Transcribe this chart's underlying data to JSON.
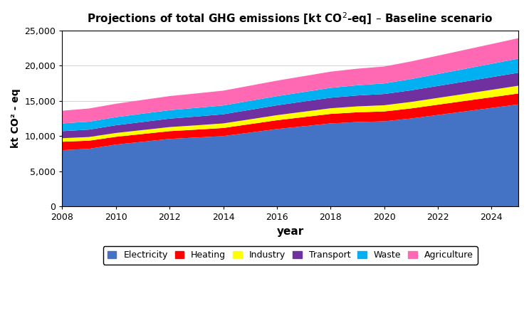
{
  "title": "Projections of total GHG emissions [kt CO²-eq] – Baseline scenario",
  "xlabel": "year",
  "ylabel": "kt CO² - eq",
  "years": [
    2008,
    2009,
    2010,
    2011,
    2012,
    2013,
    2014,
    2015,
    2016,
    2017,
    2018,
    2019,
    2020,
    2021,
    2022,
    2023,
    2024,
    2025
  ],
  "series": {
    "Electricity": [
      8000,
      8200,
      8800,
      9200,
      9600,
      9800,
      10000,
      10500,
      11000,
      11400,
      11800,
      12000,
      12100,
      12500,
      13000,
      13500,
      14000,
      14500
    ],
    "Heating": [
      1200,
      1150,
      1100,
      1100,
      1100,
      1120,
      1150,
      1200,
      1250,
      1300,
      1350,
      1380,
      1400,
      1430,
      1460,
      1490,
      1520,
      1550
    ],
    "Industry": [
      500,
      520,
      540,
      560,
      580,
      610,
      650,
      680,
      720,
      760,
      800,
      840,
      880,
      920,
      960,
      1000,
      1050,
      1100
    ],
    "Transport": [
      1000,
      1050,
      1100,
      1150,
      1200,
      1250,
      1300,
      1350,
      1400,
      1450,
      1500,
      1550,
      1600,
      1650,
      1700,
      1750,
      1800,
      1850
    ],
    "Waste": [
      1100,
      1130,
      1150,
      1180,
      1200,
      1230,
      1250,
      1280,
      1300,
      1350,
      1400,
      1450,
      1500,
      1600,
      1700,
      1800,
      1900,
      2000
    ],
    "Agriculture": [
      1800,
      1870,
      1900,
      1950,
      2000,
      2050,
      2100,
      2150,
      2200,
      2250,
      2300,
      2350,
      2400,
      2500,
      2600,
      2700,
      2800,
      2900
    ]
  },
  "colors": {
    "Electricity": "#4472C4",
    "Heating": "#FF0000",
    "Industry": "#FFFF00",
    "Transport": "#7030A0",
    "Waste": "#00B0F0",
    "Agriculture": "#FF69B4"
  },
  "ylim": [
    0,
    25000
  ],
  "yticks": [
    0,
    5000,
    10000,
    15000,
    20000,
    25000
  ],
  "xticks": [
    2008,
    2010,
    2012,
    2014,
    2016,
    2018,
    2020,
    2022,
    2024
  ],
  "figsize": [
    7.43,
    4.4
  ],
  "dpi": 100,
  "bg_color": "#FFFFFF",
  "grid_color": "#C0C0C0"
}
